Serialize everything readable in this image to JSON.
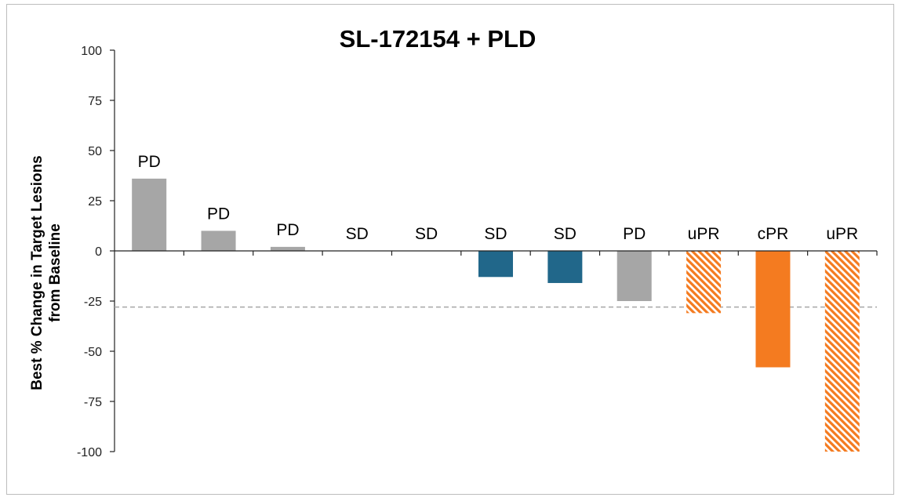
{
  "chart_data": {
    "type": "bar",
    "title": "SL-172154 + PLD",
    "ylabel_lines": [
      "Best % Change in Target Lesions",
      "from Baseline"
    ],
    "ylim": [
      -100,
      100
    ],
    "yticks": [
      100,
      75,
      50,
      25,
      0,
      -25,
      -50,
      -75,
      -100
    ],
    "reference_line": -28,
    "bars": [
      {
        "label": "PD",
        "value": 36,
        "color": "#a6a6a6",
        "pattern": "solid"
      },
      {
        "label": "PD",
        "value": 10,
        "color": "#a6a6a6",
        "pattern": "solid"
      },
      {
        "label": "PD",
        "value": 2,
        "color": "#a6a6a6",
        "pattern": "solid"
      },
      {
        "label": "SD",
        "value": 0,
        "color": "#21678a",
        "pattern": "solid"
      },
      {
        "label": "SD",
        "value": 0,
        "color": "#21678a",
        "pattern": "solid"
      },
      {
        "label": "SD",
        "value": -13,
        "color": "#21678a",
        "pattern": "solid"
      },
      {
        "label": "SD",
        "value": -16,
        "color": "#21678a",
        "pattern": "solid"
      },
      {
        "label": "PD",
        "value": -25,
        "color": "#a6a6a6",
        "pattern": "solid"
      },
      {
        "label": "uPR",
        "value": -31,
        "color": "#f47b20",
        "pattern": "hatched"
      },
      {
        "label": "cPR",
        "value": -58,
        "color": "#f47b20",
        "pattern": "solid"
      },
      {
        "label": "uPR",
        "value": -100,
        "color": "#f47b20",
        "pattern": "hatched"
      }
    ]
  }
}
